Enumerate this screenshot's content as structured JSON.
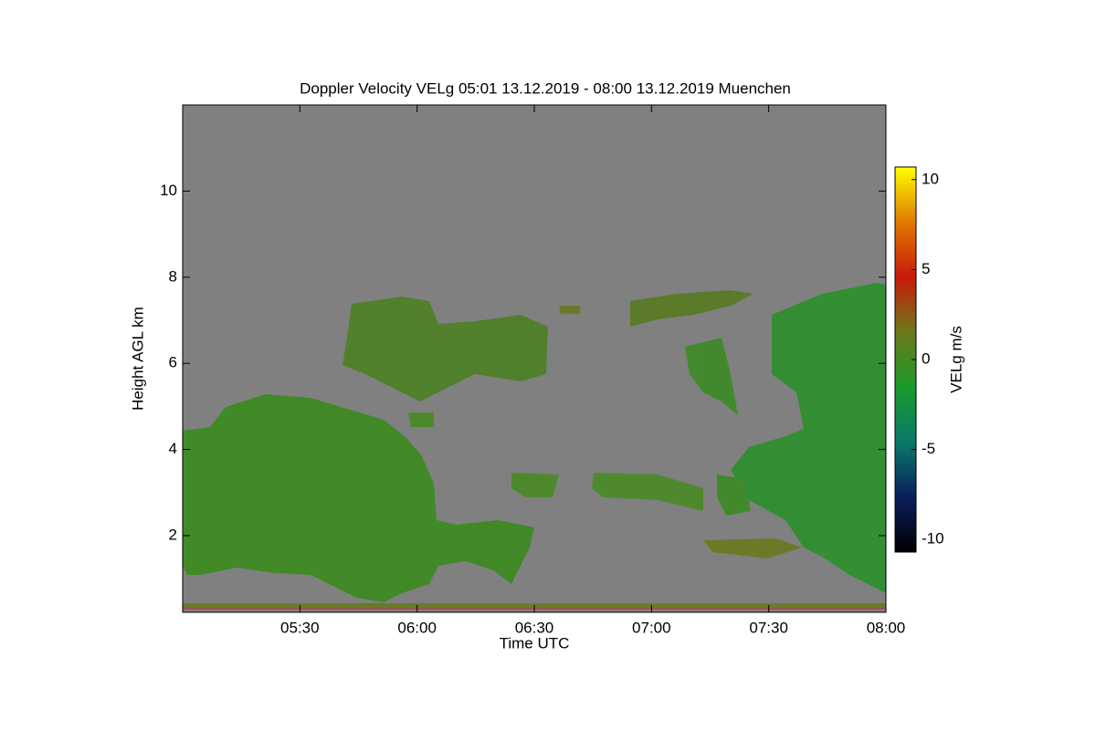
{
  "chart_data": {
    "type": "heatmap",
    "title": "Doppler Velocity VELg   05:01 13.12.2019 - 08:00 13.12.2019 Muenchen",
    "x_label": "Time UTC",
    "y_label": "Height AGL km",
    "xlim": [
      300,
      480
    ],
    "xticks": [
      {
        "value": 330,
        "label": "05:30"
      },
      {
        "value": 360,
        "label": "06:00"
      },
      {
        "value": 390,
        "label": "06:30"
      },
      {
        "value": 420,
        "label": "07:00"
      },
      {
        "value": 450,
        "label": "07:30"
      },
      {
        "value": 480,
        "label": "08:00"
      }
    ],
    "ylim": [
      0.22,
      12
    ],
    "yticks": [
      2,
      4,
      6,
      8,
      10
    ],
    "background_color": "#808080",
    "colorbar": {
      "label": "VELg m/s",
      "lim": [
        -10.7,
        10.7
      ],
      "ticks": [
        -10,
        -5,
        0,
        5,
        10
      ],
      "colors": [
        "#000000",
        "#0a1f5c",
        "#0a7a6a",
        "#1a9a2a",
        "#6b7a1a",
        "#c81a0a",
        "#e07a00",
        "#ffff00"
      ]
    }
  }
}
